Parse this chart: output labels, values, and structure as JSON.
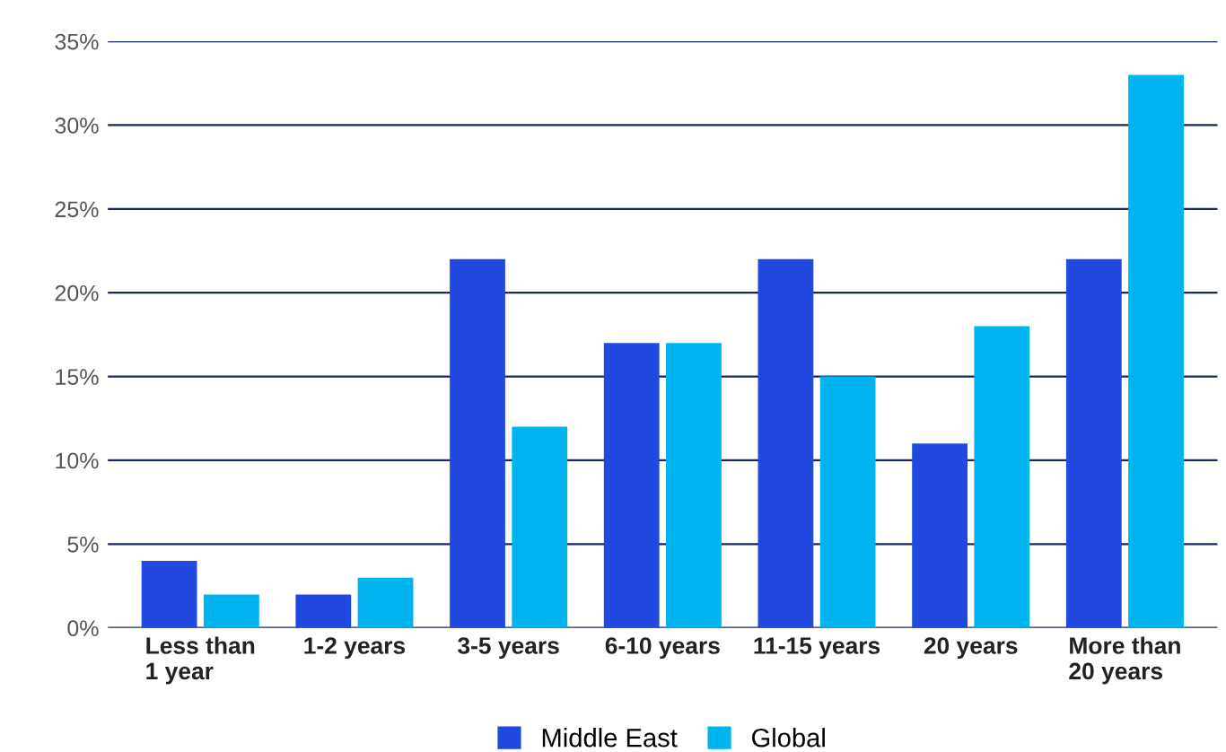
{
  "chart_data": {
    "type": "bar",
    "categories": [
      "Less than\n1 year",
      "1-2 years",
      "3-5 years",
      "6-10 years",
      "11-15 years",
      "20 years",
      "More than\n20 years"
    ],
    "series": [
      {
        "name": "Middle East",
        "color": "#2149e0",
        "values": [
          4,
          2,
          22,
          17,
          22,
          11,
          22
        ]
      },
      {
        "name": "Global",
        "color": "#00b4f0",
        "values": [
          2,
          3,
          12,
          17,
          15,
          18,
          33
        ]
      }
    ],
    "ylim": [
      0,
      35
    ],
    "yticks": [
      {
        "value": 0,
        "label": "0%"
      },
      {
        "value": 5,
        "label": "5%"
      },
      {
        "value": 10,
        "label": "10%"
      },
      {
        "value": 15,
        "label": "15%"
      },
      {
        "value": 20,
        "label": "20%"
      },
      {
        "value": 25,
        "label": "25%"
      },
      {
        "value": 30,
        "label": "30%"
      },
      {
        "value": 35,
        "label": "35%"
      }
    ],
    "grid": "y",
    "legend": "bottom"
  }
}
